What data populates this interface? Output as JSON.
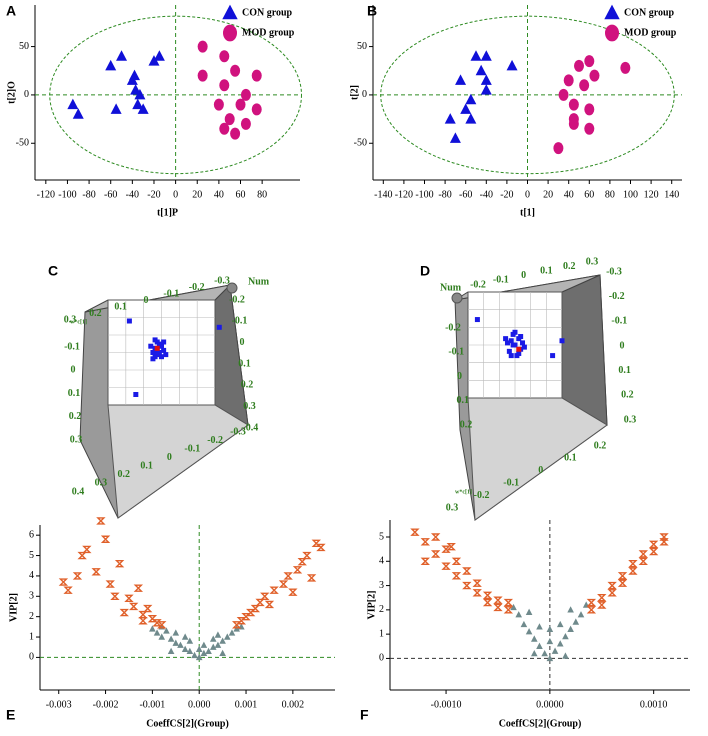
{
  "chart_data": [
    {
      "type": "scatter",
      "panel_label": "A",
      "xlabel": "t[1]P",
      "ylabel": "t[2]O",
      "xlim": [
        -130,
        115
      ],
      "ylim": [
        -88,
        93
      ],
      "xticks": [
        -120,
        -100,
        -80,
        -60,
        -40,
        -20,
        0,
        20,
        40,
        60,
        80
      ],
      "yticks": [
        -50,
        0,
        50
      ],
      "zero_lines": true,
      "zero_line_color": "#2e8b22",
      "confidence_ellipse": true,
      "series": [
        {
          "name": "CON group",
          "color": "#1010d8",
          "marker": "triangle",
          "x": [
            -95,
            -90,
            -60,
            -55,
            -50,
            -40,
            -38,
            -37,
            -35,
            -33,
            -30,
            -20,
            -15
          ],
          "values": [
            -10,
            -20,
            30,
            -15,
            40,
            15,
            20,
            5,
            -10,
            0,
            -15,
            35,
            40
          ]
        },
        {
          "name": "MOD group",
          "color": "#d0127e",
          "marker": "circle",
          "x": [
            25,
            25,
            45,
            45,
            55,
            60,
            65,
            50,
            55,
            45,
            65,
            75,
            75,
            40
          ],
          "values": [
            50,
            20,
            40,
            10,
            25,
            -10,
            0,
            -25,
            -40,
            -35,
            -30,
            20,
            -15,
            -10
          ]
        }
      ]
    },
    {
      "type": "scatter",
      "panel_label": "B",
      "xlabel": "t[1]",
      "ylabel": "t[2]",
      "xlim": [
        -150,
        150
      ],
      "ylim": [
        -88,
        93
      ],
      "xticks": [
        -140,
        -120,
        -100,
        -80,
        -60,
        -40,
        -20,
        0,
        20,
        40,
        60,
        80,
        100,
        120,
        140
      ],
      "yticks": [
        -50,
        0,
        50
      ],
      "zero_lines": true,
      "zero_line_color": "#2e8b22",
      "confidence_ellipse": true,
      "series": [
        {
          "name": "CON group",
          "color": "#1010d8",
          "marker": "triangle",
          "x": [
            -75,
            -70,
            -65,
            -60,
            -55,
            -55,
            -50,
            -45,
            -40,
            -40,
            -40,
            -15
          ],
          "values": [
            -25,
            -45,
            15,
            -15,
            -5,
            -25,
            40,
            25,
            15,
            5,
            40,
            30
          ]
        },
        {
          "name": "MOD group",
          "color": "#d0127e",
          "marker": "circle",
          "x": [
            30,
            35,
            40,
            45,
            45,
            45,
            50,
            55,
            60,
            60,
            65,
            60,
            95
          ],
          "values": [
            -55,
            0,
            15,
            -10,
            -25,
            -30,
            30,
            10,
            35,
            -15,
            20,
            -35,
            28
          ]
        }
      ]
    },
    {
      "type": "scatter3d",
      "panel_label": "C",
      "axis_label": "Num",
      "small_label": "w*c[1]",
      "xlim": [
        -0.25,
        0.25
      ],
      "ylim": [
        -0.25,
        0.25
      ],
      "tick_groups": [
        [
          0.3,
          0.2,
          0.1,
          0,
          -0.1,
          -0.2,
          -0.3
        ],
        [
          -0.2,
          -0.1,
          0,
          0.1,
          0.2,
          0.3,
          0.4
        ],
        [
          -0.1,
          0,
          0.1,
          0.2,
          0.3
        ],
        [
          0.4,
          0.3,
          0.2,
          0.1,
          0,
          -0.1,
          -0.2,
          -0.3
        ]
      ],
      "series": [
        {
          "color": "#1a1ae6",
          "x": [
            -0.03,
            -0.01,
            0.01,
            -0.04,
            -0.02,
            0.0,
            -0.05,
            -0.03,
            0.02,
            -0.01,
            -0.02,
            0.01,
            -0.04,
            -0.03,
            0.0,
            -0.02,
            -0.15,
            0.27,
            -0.12
          ],
          "values": [
            0.02,
            0.04,
            0.01,
            0.0,
            -0.01,
            0.03,
            0.03,
            -0.02,
            -0.01,
            0.0,
            0.05,
            0.05,
            -0.03,
            0.06,
            -0.02,
            0.01,
            0.15,
            0.12,
            -0.2
          ]
        },
        {
          "color": "#e01010",
          "x": [
            -0.02
          ],
          "values": [
            0.02
          ]
        }
      ]
    },
    {
      "type": "scatter3d",
      "panel_label": "D",
      "axis_label": "Num",
      "small_label": "w*c[1]",
      "xlim": [
        -0.25,
        0.25
      ],
      "ylim": [
        -0.25,
        0.25
      ],
      "tick_groups": [
        [
          -0.2,
          -0.1,
          0,
          0.1,
          0.2,
          0.3
        ],
        [
          -0.3,
          -0.2,
          -0.1,
          0,
          0.1,
          0.2,
          0.3
        ],
        [
          -0.2,
          -0.1,
          0,
          0.1,
          0.2
        ],
        [
          0.3,
          -0.2,
          -0.1,
          0,
          0.1,
          0.2
        ]
      ],
      "series": [
        {
          "color": "#1a1ae6",
          "x": [
            0.0,
            0.02,
            -0.02,
            0.03,
            -0.03,
            0.01,
            -0.01,
            0.04,
            -0.04,
            0.02,
            -0.02,
            0.0,
            0.05,
            -0.05,
            0.03,
            -0.01,
            -0.2,
            0.25,
            0.2
          ],
          "values": [
            0.0,
            0.03,
            0.02,
            -0.02,
            -0.03,
            -0.05,
            0.05,
            0.01,
            0.01,
            -0.04,
            -0.05,
            0.06,
            -0.01,
            0.03,
            0.04,
            0.0,
            0.12,
            0.02,
            -0.05
          ]
        },
        {
          "color": "#e01010",
          "x": [
            0.02
          ],
          "values": [
            -0.02
          ]
        }
      ]
    },
    {
      "type": "scatter",
      "panel_label": "E",
      "xlabel": "CoeffCS[2](Group)",
      "ylabel": "VIP[2]",
      "xlim": [
        -0.0034,
        0.0029
      ],
      "ylim": [
        -1.6,
        6.5
      ],
      "xticks": [
        -0.003,
        -0.002,
        -0.001,
        {
          "value": 0,
          "label": "0.000"
        },
        0.001,
        0.002
      ],
      "yticks": [
        0,
        1,
        2,
        3,
        4,
        5,
        6
      ],
      "zero_lines": true,
      "zero_line_color": "#2e8b22",
      "confidence_ellipse": false,
      "series": [
        {
          "color": "#6f8a8c",
          "marker": "triangle",
          "x": [
            -0.001,
            -0.0009,
            -0.0008,
            -0.0007,
            -0.0006,
            -0.0005,
            -0.0004,
            -0.0003,
            -0.0002,
            -0.0001,
            0,
            0.0001,
            0.0002,
            0.0003,
            0.0004,
            0.0005,
            0.0006,
            0.0007,
            0.0008,
            -0.0005,
            0.0004,
            -0.0002,
            0.0001,
            -0.0008,
            0.0009,
            -0.0003,
            0.0003,
            0,
            -0.0006,
            0.0005
          ],
          "values": [
            1.4,
            1.2,
            1.0,
            1.3,
            0.9,
            0.7,
            0.6,
            0.4,
            0.3,
            0.1,
            0.0,
            0.2,
            0.3,
            0.5,
            0.6,
            0.8,
            1.0,
            1.2,
            1.4,
            1.2,
            1.1,
            0.8,
            0.6,
            1.5,
            1.5,
            1.0,
            0.9,
            0.4,
            0.3,
            0.2
          ]
        },
        {
          "color": "#e0602a",
          "marker": "hourglass",
          "x": [
            -0.0029,
            -0.0028,
            -0.0026,
            -0.0024,
            -0.0022,
            -0.0021,
            -0.002,
            -0.0019,
            -0.0018,
            -0.0017,
            -0.0015,
            -0.0014,
            -0.0013,
            -0.0012,
            -0.0011,
            -0.001,
            -0.0009,
            -0.0012,
            -0.0008,
            0.0008,
            0.0009,
            0.001,
            0.0011,
            0.0012,
            0.0013,
            0.0014,
            0.0015,
            0.0016,
            0.0018,
            0.0019,
            0.002,
            0.0021,
            0.0022,
            0.0023,
            0.0025,
            0.0026,
            0.0024,
            -0.0025,
            -0.0016
          ],
          "values": [
            3.7,
            3.3,
            4.0,
            5.3,
            4.2,
            6.7,
            5.8,
            3.6,
            3.0,
            4.6,
            2.9,
            2.5,
            3.4,
            2.1,
            2.4,
            1.9,
            1.7,
            1.8,
            1.6,
            1.6,
            1.8,
            2.0,
            2.2,
            2.4,
            2.7,
            3.0,
            2.6,
            3.3,
            3.6,
            4.0,
            3.2,
            4.3,
            4.7,
            5.0,
            5.6,
            5.4,
            3.9,
            5.0,
            2.2
          ]
        }
      ]
    },
    {
      "type": "scatter",
      "panel_label": "F",
      "xlabel": "CoeffCS[2](Group)",
      "ylabel": "VIP[2]",
      "xlim": [
        -0.00154,
        0.00135
      ],
      "ylim": [
        -1.3,
        5.7
      ],
      "xticks": [
        {
          "value": -0.001,
          "label": "-0.0010"
        },
        {
          "value": 0,
          "label": "0.0000"
        },
        {
          "value": 0.001,
          "label": "0.0010"
        }
      ],
      "yticks": [
        0,
        1,
        2,
        3,
        4,
        5
      ],
      "zero_lines": true,
      "zero_line_color": "#333333",
      "confidence_ellipse": false,
      "series": [
        {
          "color": "#6f8a8c",
          "marker": "triangle",
          "x": [
            -0.0003,
            -0.00025,
            -0.0002,
            -0.00015,
            -0.0001,
            -5e-05,
            0,
            5e-05,
            0.0001,
            0.00015,
            0.0002,
            0.00025,
            0.0003,
            -0.0002,
            0.0002,
            -0.0001,
            0.0001,
            0,
            -0.00035,
            0.00035,
            -0.00015,
            0.00015,
            0
          ],
          "values": [
            1.8,
            1.4,
            1.1,
            0.8,
            0.5,
            0.2,
            0,
            0.3,
            0.6,
            0.9,
            1.2,
            1.5,
            1.8,
            1.9,
            2.0,
            1.3,
            1.4,
            0.7,
            2.1,
            2.2,
            0.2,
            0.1,
            1.2
          ]
        },
        {
          "color": "#e0602a",
          "marker": "hourglass",
          "x": [
            -0.0013,
            -0.0012,
            -0.0011,
            -0.0011,
            -0.001,
            -0.001,
            -0.0009,
            -0.0009,
            -0.0008,
            -0.0008,
            -0.0007,
            -0.0007,
            -0.0006,
            -0.0006,
            -0.0005,
            -0.0005,
            -0.0004,
            -0.0004,
            0.0004,
            0.0004,
            0.0005,
            0.0005,
            0.0006,
            0.0006,
            0.0007,
            0.0007,
            0.0008,
            0.0008,
            0.0009,
            0.0009,
            0.001,
            0.001,
            0.0011,
            0.0011,
            -0.0012,
            -0.00095
          ],
          "values": [
            5.2,
            4.8,
            5.0,
            4.3,
            4.5,
            3.8,
            4.0,
            3.4,
            3.6,
            3.0,
            3.1,
            2.7,
            2.6,
            2.3,
            2.4,
            2.1,
            2.0,
            2.3,
            2.0,
            2.3,
            2.5,
            2.2,
            2.7,
            3.0,
            3.1,
            3.4,
            3.6,
            3.9,
            4.0,
            4.3,
            4.4,
            4.7,
            4.8,
            5.0,
            4.0,
            4.6
          ]
        }
      ]
    }
  ]
}
